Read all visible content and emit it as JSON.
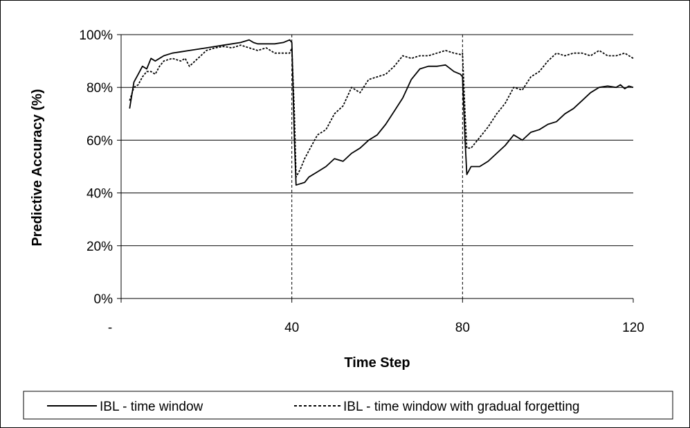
{
  "chart_data": {
    "type": "line",
    "title": "",
    "xlabel": "Time Step",
    "ylabel": "Predictive Accuracy (%)",
    "xlim": [
      0,
      120
    ],
    "ylim": [
      0,
      100
    ],
    "x_ticks": [
      {
        "value": 0,
        "label": "-"
      },
      {
        "value": 40,
        "label": "40"
      },
      {
        "value": 80,
        "label": "80"
      },
      {
        "value": 120,
        "label": "120"
      }
    ],
    "y_ticks": [
      {
        "value": 0,
        "label": "0%"
      },
      {
        "value": 20,
        "label": "20%"
      },
      {
        "value": 40,
        "label": "40%"
      },
      {
        "value": 60,
        "label": "60%"
      },
      {
        "value": 80,
        "label": "80%"
      },
      {
        "value": 100,
        "label": "100%"
      }
    ],
    "grid": "horizontal",
    "vertical_markers": [
      40,
      80
    ],
    "legend_position": "bottom",
    "series": [
      {
        "name": "IBL - time window",
        "style": "solid",
        "color": "#000000",
        "x": [
          2,
          3,
          4,
          5,
          6,
          7,
          8,
          9,
          10,
          12,
          14,
          16,
          18,
          20,
          22,
          24,
          26,
          28,
          30,
          31,
          32,
          34,
          36,
          38,
          39.5,
          40,
          40.6,
          41,
          42,
          43,
          44,
          46,
          48,
          50,
          52,
          54,
          56,
          58,
          60,
          62,
          64,
          66,
          68,
          70,
          72,
          74,
          76,
          78,
          79.5,
          80,
          80.6,
          81,
          82,
          84,
          86,
          88,
          90,
          92,
          94,
          96,
          98,
          100,
          102,
          104,
          106,
          108,
          110,
          112,
          114,
          116,
          117,
          118,
          119,
          120
        ],
        "y": [
          72,
          82,
          85,
          88,
          87,
          91,
          90,
          91,
          92,
          93,
          93.5,
          94,
          94.5,
          95,
          95.5,
          96,
          96.5,
          97,
          98,
          97,
          96.5,
          96.5,
          96.5,
          97,
          98,
          97,
          60,
          43,
          43.5,
          44,
          46,
          48,
          50,
          53,
          52,
          55,
          57,
          60,
          62,
          66,
          71,
          76,
          83,
          87,
          88,
          88,
          88.5,
          86,
          85,
          84,
          60,
          47,
          50,
          50,
          52,
          55,
          58,
          62,
          60,
          63,
          64,
          66,
          67,
          70,
          72,
          75,
          78,
          80,
          80.5,
          80,
          81,
          79.5,
          80.5,
          80
        ]
      },
      {
        "name": "IBL - time window with gradual forgetting",
        "style": "dotted",
        "color": "#000000",
        "x": [
          2,
          3,
          4,
          5,
          6,
          7,
          8,
          9,
          10,
          12,
          14,
          15,
          16,
          18,
          20,
          22,
          24,
          26,
          28,
          30,
          32,
          34,
          36,
          38,
          39.5,
          40,
          40.6,
          41,
          42,
          43,
          44,
          46,
          48,
          50,
          52,
          54,
          56,
          58,
          60,
          62,
          64,
          66,
          68,
          70,
          72,
          74,
          76,
          78,
          79.5,
          80,
          80.6,
          81,
          82,
          84,
          86,
          88,
          90,
          92,
          94,
          96,
          98,
          100,
          102,
          104,
          106,
          108,
          110,
          112,
          114,
          116,
          118,
          119,
          120
        ],
        "y": [
          75,
          80,
          81,
          84,
          86,
          86,
          85,
          88,
          90,
          91,
          90,
          91,
          88,
          91,
          94,
          95,
          95.5,
          95,
          96,
          95,
          94,
          95,
          93,
          93,
          93,
          95,
          70,
          46,
          49,
          53,
          56,
          62,
          64,
          70,
          73,
          80,
          78,
          83,
          84,
          85,
          88,
          92,
          91,
          92,
          92,
          93,
          94,
          93,
          92.5,
          93,
          70,
          57,
          57,
          61,
          65,
          70,
          74,
          80,
          79,
          84,
          86,
          90,
          93,
          92,
          93,
          93,
          92,
          94,
          92,
          92,
          93,
          92,
          91
        ]
      }
    ]
  }
}
